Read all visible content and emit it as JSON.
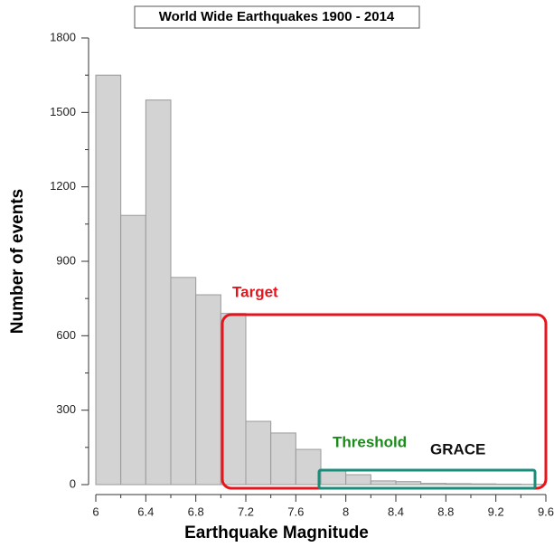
{
  "chart_data": {
    "type": "histogram",
    "title": "World Wide Earthquakes 1900 - 2014",
    "x_label": "Earthquake Magnitude",
    "y_label": "Number of events",
    "bins": [
      6,
      6.2,
      6.4,
      6.6,
      6.8,
      7,
      7.2,
      7.4,
      7.6,
      7.8,
      8,
      8.2,
      8.4,
      8.6,
      8.8,
      9,
      9.2,
      9.4,
      9.6
    ],
    "values": [
      1650,
      1085,
      1550,
      835,
      765,
      690,
      255,
      208,
      142,
      58,
      40,
      15,
      12,
      5,
      4,
      3,
      2,
      1
    ],
    "color": "#d3d3d3",
    "xlim": [
      6,
      9.6
    ],
    "xticks": [
      6,
      6.4,
      6.8,
      7.2,
      7.6,
      8,
      8.4,
      8.8,
      9.2,
      9.6
    ],
    "ylim": [
      0,
      1800
    ],
    "yticks": [
      0,
      300,
      600,
      900,
      1200,
      1500,
      1800
    ],
    "annotations": [
      {
        "text": "Target",
        "color": "#e8141c"
      },
      {
        "text": "Threshold",
        "color": "#1a8c1a"
      },
      {
        "text": "GRACE",
        "color": "#111111"
      }
    ]
  }
}
